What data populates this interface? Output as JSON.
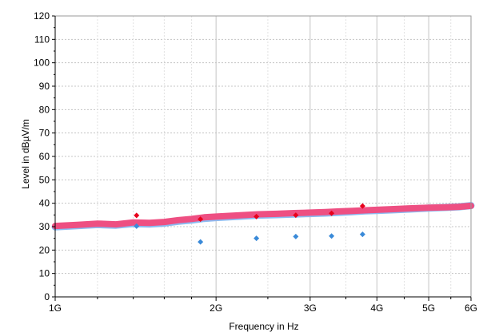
{
  "chart_data": {
    "type": "line",
    "xlabel": "Frequency in Hz",
    "ylabel": "Level in dBµV/m",
    "x_scale": "log",
    "xlim": [
      1000000000,
      6000000000
    ],
    "ylim": [
      0,
      120
    ],
    "grid": true,
    "x_ticks": [
      {
        "value": 1000000000,
        "label": "1G"
      },
      {
        "value": 2000000000,
        "label": "2G"
      },
      {
        "value": 3000000000,
        "label": "3G"
      },
      {
        "value": 4000000000,
        "label": "4G"
      },
      {
        "value": 5000000000,
        "label": "5G"
      },
      {
        "value": 6000000000,
        "label": "6G"
      }
    ],
    "y_ticks": [
      0,
      10,
      20,
      30,
      40,
      50,
      60,
      70,
      80,
      90,
      100,
      110,
      120
    ],
    "colors": {
      "peak_trace": "#ee4f82",
      "average_trace": "#8bbcf2",
      "peak_markers": "#e8001c",
      "average_markers": "#3a8ad8",
      "grid": "#c4c4c4"
    },
    "series": [
      {
        "role": "peak-trace",
        "x": [
          1000000000,
          1100000000,
          1200000000,
          1300000000,
          1400000000,
          1500000000,
          1600000000,
          1700000000,
          1800000000,
          1900000000,
          2000000000,
          2200000000,
          2400000000,
          2600000000,
          2800000000,
          3000000000,
          3200000000,
          3400000000,
          3600000000,
          3800000000,
          4000000000,
          4300000000,
          4600000000,
          5000000000,
          5400000000,
          5700000000,
          6000000000
        ],
        "y": [
          30.3,
          30.8,
          31.3,
          31.0,
          31.8,
          31.6,
          32.0,
          32.8,
          33.3,
          34.0,
          34.3,
          34.8,
          35.3,
          35.5,
          35.8,
          36.0,
          36.2,
          36.5,
          36.7,
          37.0,
          37.2,
          37.5,
          37.8,
          38.1,
          38.3,
          38.5,
          38.9
        ]
      },
      {
        "role": "average-trace",
        "x": [
          1000000000,
          1100000000,
          1200000000,
          1300000000,
          1400000000,
          1500000000,
          1600000000,
          1700000000,
          1800000000,
          1900000000,
          2000000000,
          2200000000,
          2400000000,
          2600000000,
          2800000000,
          3000000000,
          3200000000,
          3400000000,
          3600000000,
          3800000000,
          4000000000,
          4300000000,
          4600000000,
          5000000000,
          5400000000,
          5700000000,
          6000000000
        ],
        "y": [
          29.9,
          30.4,
          30.9,
          30.6,
          31.3,
          31.1,
          31.5,
          32.3,
          32.8,
          33.5,
          33.9,
          34.4,
          34.9,
          35.1,
          35.4,
          35.6,
          35.8,
          36.1,
          36.4,
          36.7,
          36.9,
          37.2,
          37.5,
          37.9,
          38.2,
          38.5,
          39.0
        ]
      },
      {
        "role": "peak-markers",
        "x": [
          1420000000,
          1870000000,
          2380000000,
          2820000000,
          3290000000,
          3760000000
        ],
        "y": [
          34.8,
          33.2,
          34.3,
          34.9,
          35.7,
          38.8
        ]
      },
      {
        "role": "average-markers",
        "x": [
          1420000000,
          1870000000,
          2380000000,
          2820000000,
          3290000000,
          3760000000
        ],
        "y": [
          30.2,
          23.5,
          25.0,
          25.8,
          26.0,
          26.7
        ]
      }
    ]
  }
}
